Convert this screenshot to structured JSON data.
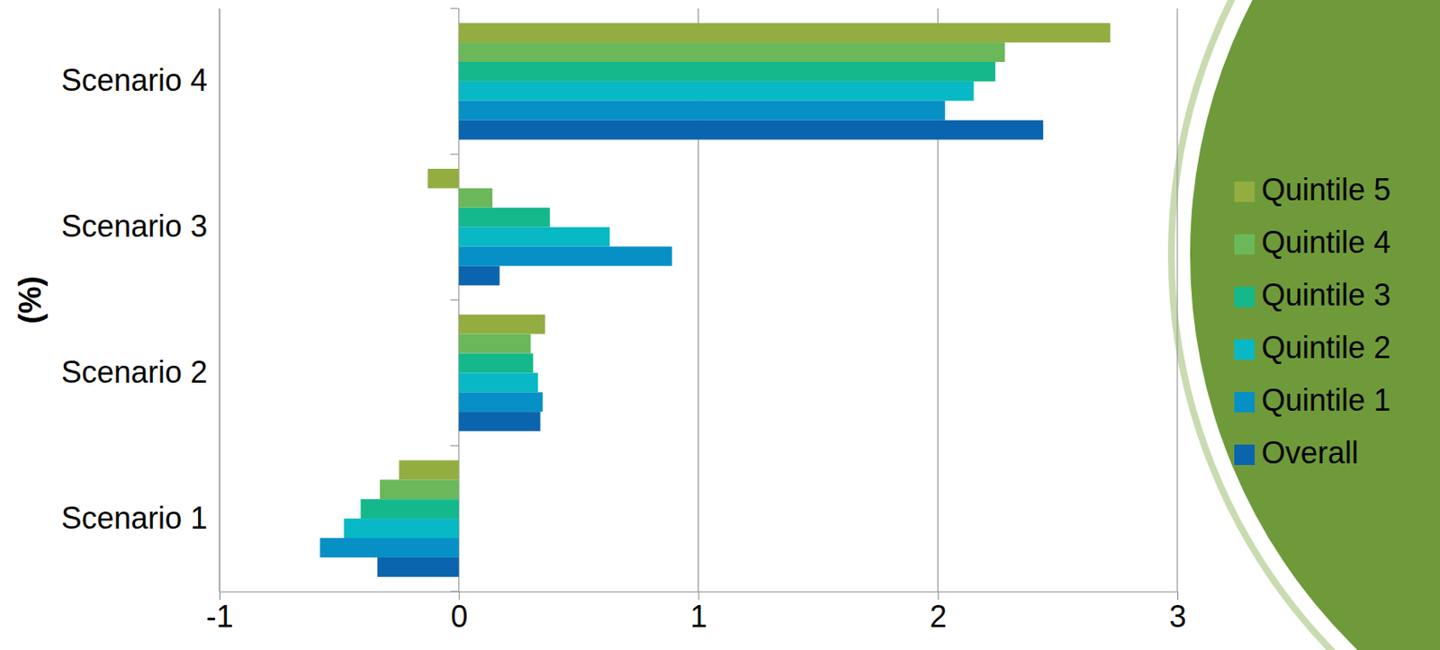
{
  "chart_data": {
    "type": "bar",
    "orientation": "horizontal",
    "ylabel": "(%)",
    "categories": [
      "Scenario 1",
      "Scenario 2",
      "Scenario 3",
      "Scenario 4"
    ],
    "series": [
      {
        "name": "Quintile 5",
        "color": "#93ad41",
        "values": [
          -0.25,
          0.36,
          -0.13,
          2.72
        ]
      },
      {
        "name": "Quintile 4",
        "color": "#6bb85a",
        "values": [
          -0.33,
          0.3,
          0.14,
          2.28
        ]
      },
      {
        "name": "Quintile 3",
        "color": "#14b88a",
        "values": [
          -0.41,
          0.31,
          0.38,
          2.24
        ]
      },
      {
        "name": "Quintile 2",
        "color": "#08b8c4",
        "values": [
          -0.48,
          0.33,
          0.63,
          2.15
        ]
      },
      {
        "name": "Quintile 1",
        "color": "#0790c6",
        "values": [
          -0.58,
          0.35,
          0.89,
          2.03
        ]
      },
      {
        "name": "Overall",
        "color": "#0b64ae",
        "values": [
          -0.34,
          0.34,
          0.17,
          2.44
        ]
      }
    ],
    "xlim": [
      -1,
      3
    ],
    "xticks": [
      -1,
      0,
      1,
      2,
      3
    ],
    "grid": true,
    "legend": "right"
  }
}
